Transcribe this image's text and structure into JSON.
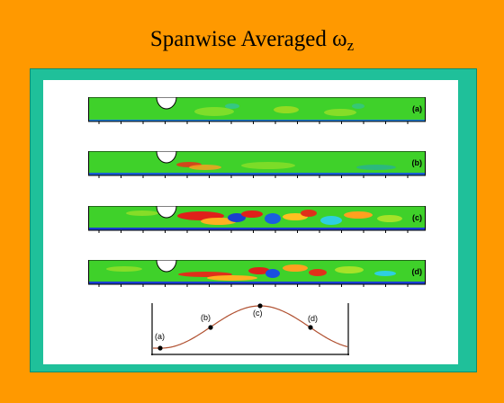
{
  "slide": {
    "title_main": "Spanwise Averaged ",
    "title_symbol": "ω",
    "title_subscript": "z"
  },
  "strips": [
    {
      "label": "(a)"
    },
    {
      "label": "(b)"
    },
    {
      "label": "(c)"
    },
    {
      "label": "(d)"
    }
  ],
  "phase_curve": {
    "points": [
      {
        "label": "(a)"
      },
      {
        "label": "(b)"
      },
      {
        "label": "(c)"
      },
      {
        "label": "(d)"
      }
    ]
  },
  "colors": {
    "background": "#FF9900",
    "frame": "#1FC09A",
    "field": "#3FD12A",
    "curve": "#B05030"
  }
}
